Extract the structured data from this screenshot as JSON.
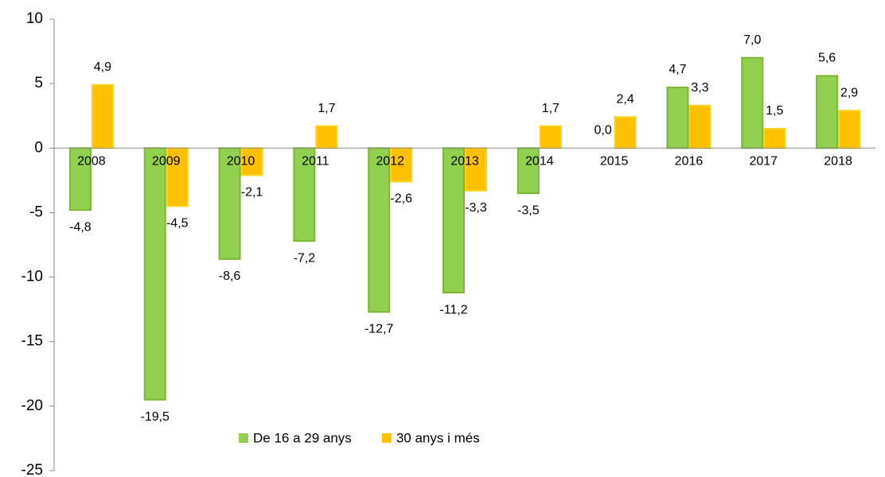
{
  "chart_data": {
    "type": "bar",
    "categories": [
      "2008",
      "2009",
      "2010",
      "2011",
      "2012",
      "2013",
      "2014",
      "2015",
      "2016",
      "2017",
      "2018"
    ],
    "series": [
      {
        "name": "De 16 a 29 anys",
        "color": "#92d050",
        "stroke": "#7cb82f",
        "values": [
          -4.8,
          -19.5,
          -8.6,
          -7.2,
          -12.7,
          -11.2,
          -3.5,
          0.0,
          4.7,
          7.0,
          5.6
        ],
        "value_labels": [
          "-4,8",
          "-19,5",
          "-8,6",
          "-7,2",
          "-12,7",
          "-11,2",
          "-3,5",
          "0,0",
          "4,7",
          "7,0",
          "5,6"
        ]
      },
      {
        "name": "30 anys i més",
        "color": "#ffc000",
        "stroke": "#ffd21f",
        "values": [
          4.9,
          -4.5,
          -2.1,
          1.7,
          -2.6,
          -3.3,
          1.7,
          2.4,
          3.3,
          1.5,
          2.9
        ],
        "value_labels": [
          "4,9",
          "-4,5",
          "-2,1",
          "1,7",
          "-2,6",
          "-3,3",
          "1,7",
          "2,4",
          "3,3",
          "1,5",
          "2,9"
        ]
      }
    ],
    "ylim": [
      -25,
      10
    ],
    "yticks": [
      -25,
      -20,
      -15,
      -10,
      -5,
      0,
      5,
      10
    ],
    "grid": false,
    "legend": "bottom"
  }
}
